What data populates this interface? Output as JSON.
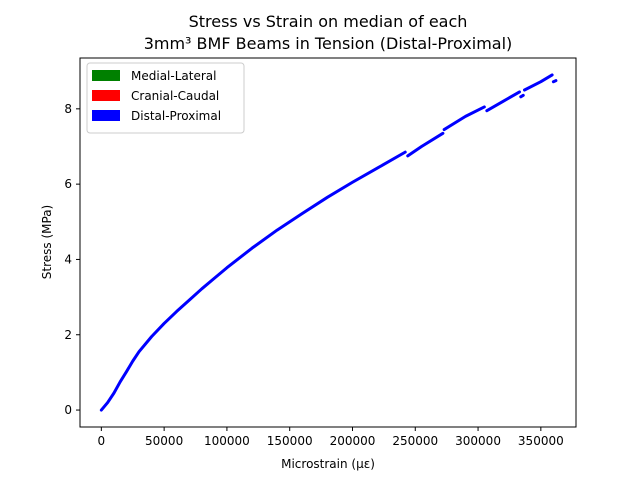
{
  "chart_data": {
    "type": "line",
    "title_lines": [
      "Stress vs Strain on median of each",
      "3mm³ BMF Beams in Tension (Distal-Proximal)"
    ],
    "xlabel": "Microstrain (με)",
    "ylabel": "Stress (MPa)",
    "xlim": [
      -17000,
      378000
    ],
    "ylim": [
      -0.45,
      9.35
    ],
    "x_ticks": [
      0,
      50000,
      100000,
      150000,
      200000,
      250000,
      300000,
      350000
    ],
    "x_tick_labels": [
      "0",
      "50000",
      "100000",
      "150000",
      "200000",
      "250000",
      "300000",
      "350000"
    ],
    "y_ticks": [
      0,
      2,
      4,
      6,
      8
    ],
    "y_tick_labels": [
      "0",
      "2",
      "4",
      "6",
      "8"
    ],
    "grid": false,
    "legend_position": "upper-left",
    "legend": [
      {
        "label": "Medial-Lateral",
        "color": "#008000"
      },
      {
        "label": "Cranial-Caudal",
        "color": "#ff0000"
      },
      {
        "label": "Distal-Proximal",
        "color": "#0000ff"
      }
    ],
    "series": [
      {
        "name": "Distal-Proximal",
        "color": "#0000ff",
        "segments": [
          [
            [
              0,
              0.0
            ],
            [
              2000,
              0.08
            ],
            [
              5000,
              0.2
            ],
            [
              10000,
              0.45
            ],
            [
              15000,
              0.75
            ],
            [
              20000,
              1.02
            ],
            [
              25000,
              1.3
            ],
            [
              30000,
              1.55
            ],
            [
              40000,
              1.95
            ],
            [
              50000,
              2.3
            ],
            [
              60000,
              2.62
            ],
            [
              70000,
              2.92
            ],
            [
              80000,
              3.22
            ],
            [
              90000,
              3.5
            ],
            [
              100000,
              3.78
            ],
            [
              120000,
              4.3
            ],
            [
              140000,
              4.78
            ],
            [
              160000,
              5.22
            ],
            [
              180000,
              5.65
            ],
            [
              200000,
              6.05
            ],
            [
              220000,
              6.43
            ],
            [
              242000,
              6.85
            ]
          ],
          [
            [
              244000,
              6.75
            ],
            [
              255000,
              7.0
            ],
            [
              272000,
              7.35
            ]
          ],
          [
            [
              273000,
              7.45
            ],
            [
              290000,
              7.8
            ],
            [
              305000,
              8.05
            ]
          ],
          [
            [
              307000,
              7.95
            ],
            [
              320000,
              8.2
            ],
            [
              333000,
              8.45
            ]
          ],
          [
            [
              334000,
              8.32
            ],
            [
              336000,
              8.36
            ]
          ],
          [
            [
              337000,
              8.5
            ],
            [
              350000,
              8.72
            ],
            [
              359000,
              8.9
            ]
          ],
          [
            [
              360000,
              8.72
            ],
            [
              362000,
              8.75
            ]
          ]
        ]
      }
    ]
  }
}
